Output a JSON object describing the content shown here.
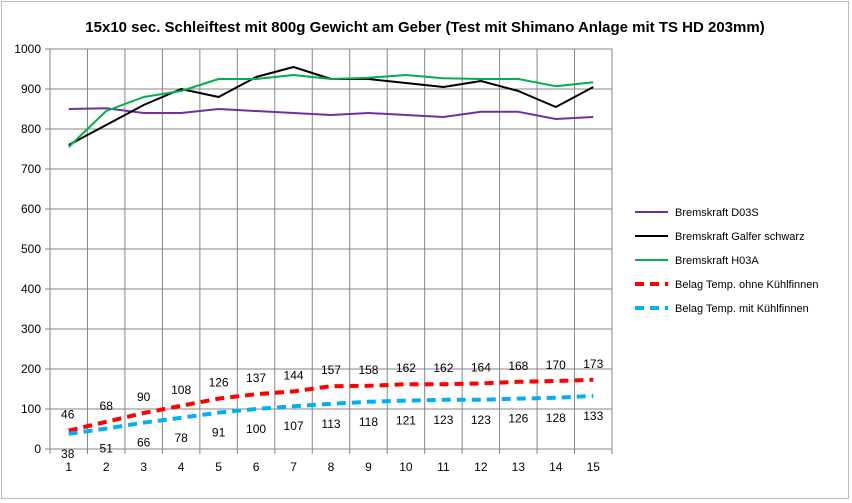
{
  "chart_data": {
    "type": "line",
    "title": "15x10 sec. Schleiftest mit 800g Gewicht am Geber (Test mit Shimano Anlage mit TS HD 203mm)",
    "xlabel": "",
    "ylabel": "",
    "categories": [
      "1",
      "2",
      "3",
      "4",
      "5",
      "6",
      "7",
      "8",
      "9",
      "10",
      "11",
      "12",
      "13",
      "14",
      "15"
    ],
    "ylim": [
      0,
      1000
    ],
    "yticks": [
      "0",
      "100",
      "200",
      "300",
      "400",
      "500",
      "600",
      "700",
      "800",
      "900",
      "1000"
    ],
    "grid": true,
    "legend_position": "right",
    "series": [
      {
        "name": "Bremskraft D03S",
        "color": "#7030a0",
        "style": "solid",
        "values": [
          850,
          852,
          840,
          840,
          850,
          845,
          840,
          835,
          840,
          835,
          830,
          843,
          843,
          825,
          830
        ]
      },
      {
        "name": "Bremskraft Galfer schwarz",
        "color": "#000000",
        "style": "solid",
        "values": [
          760,
          810,
          860,
          900,
          880,
          930,
          955,
          925,
          925,
          915,
          905,
          920,
          895,
          855,
          905
        ]
      },
      {
        "name": "Bremskraft H03A",
        "color": "#00b050",
        "style": "solid",
        "values": [
          755,
          845,
          880,
          895,
          925,
          925,
          935,
          925,
          928,
          935,
          927,
          925,
          925,
          907,
          917
        ]
      },
      {
        "name": "Belag Temp. ohne Kühlfinnen",
        "color": "#ff0000",
        "style": "dashed",
        "labels_above": true,
        "values": [
          46,
          68,
          90,
          108,
          126,
          137,
          144,
          157,
          158,
          162,
          162,
          164,
          168,
          170,
          173
        ],
        "labels": [
          "46",
          "68",
          "90",
          "108",
          "126",
          "137",
          "144",
          "157",
          "158",
          "162",
          "162",
          "164",
          "168",
          "170",
          "173"
        ]
      },
      {
        "name": "Belag Temp. mit Kühlfinnen",
        "color": "#00b0f0",
        "style": "dashed",
        "labels_above": false,
        "values": [
          38,
          51,
          66,
          78,
          91,
          100,
          107,
          113,
          118,
          121,
          123,
          123,
          126,
          128,
          133
        ],
        "labels": [
          "38",
          "51",
          "66",
          "78",
          "91",
          "100",
          "107",
          "113",
          "118",
          "121",
          "123",
          "123",
          "126",
          "128",
          "133"
        ]
      }
    ]
  }
}
